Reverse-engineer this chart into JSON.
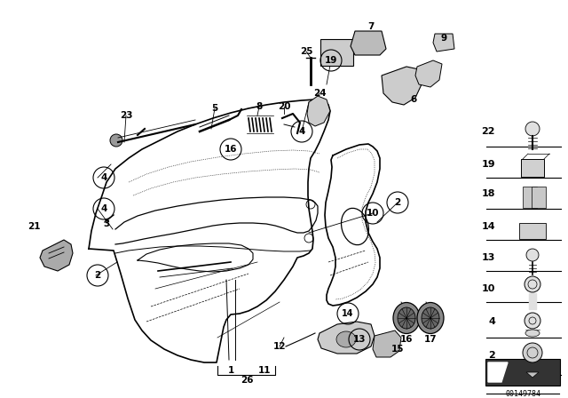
{
  "bg_color": "#ffffff",
  "part_number": "00149784",
  "fig_w": 6.4,
  "fig_h": 4.48,
  "dpi": 100
}
